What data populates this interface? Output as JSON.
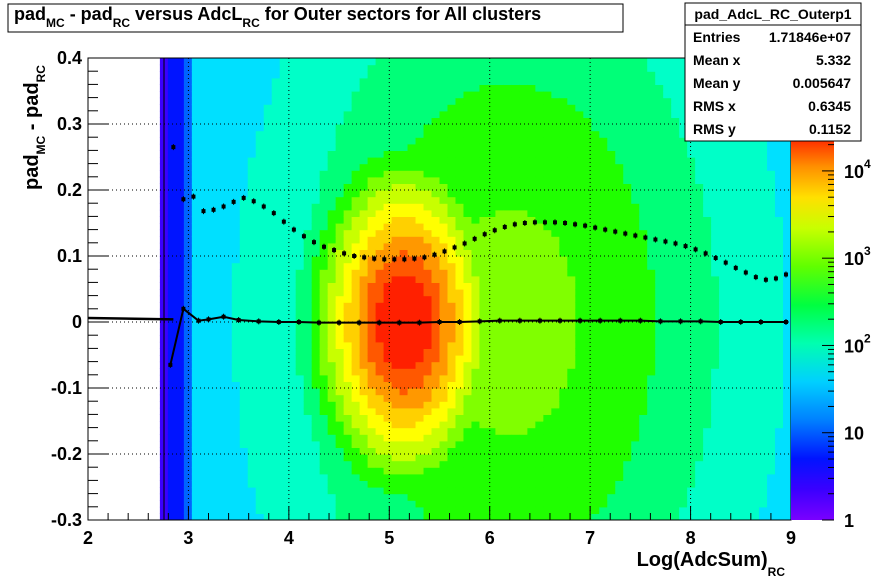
{
  "chart_data": {
    "type": "heatmap",
    "title": {
      "parts": [
        "pad",
        "MC",
        " - pad",
        "RC",
        " versus AdcL",
        "RC",
        " for Outer sectors for All clusters"
      ]
    },
    "xlabel": {
      "main": "Log(AdcSum)",
      "sub": "RC"
    },
    "ylabel": {
      "parts": [
        "pad",
        "MC",
        " - pad",
        "RC"
      ]
    },
    "xlim": [
      2,
      9
    ],
    "ylim": [
      -0.3,
      0.4
    ],
    "x_ticks": [
      "2",
      "3",
      "4",
      "5",
      "6",
      "7",
      "8",
      "9"
    ],
    "y_ticks": [
      "-0.3",
      "-0.2",
      "-0.1",
      "0",
      "0.1",
      "0.2",
      "0.3",
      "0.4"
    ],
    "z_scale": "log",
    "z_ticks": [
      "1",
      "10",
      "10^2",
      "10^3",
      "10^4"
    ],
    "grid": true,
    "stats": {
      "name": "pad_AdcL_RC_Outerp1",
      "rows": [
        {
          "label": "Entries",
          "value": "1.71846e+07"
        },
        {
          "label": "Mean x",
          "value": "5.332"
        },
        {
          "label": "Mean y",
          "value": "0.005647"
        },
        {
          "label": "RMS x",
          "value": "0.6345"
        },
        {
          "label": "RMS y",
          "value": "0.1152"
        }
      ]
    },
    "series": [
      {
        "name": "mean",
        "x": [
          2.82,
          2.95,
          3.1,
          3.2,
          3.35,
          3.5,
          3.7,
          3.9,
          4.1,
          4.3,
          4.5,
          4.7,
          4.9,
          5.1,
          5.3,
          5.5,
          5.7,
          5.9,
          6.1,
          6.3,
          6.5,
          6.7,
          6.9,
          7.1,
          7.3,
          7.5,
          7.7,
          7.9,
          8.1,
          8.3,
          8.5,
          8.7,
          8.95
        ],
        "y": [
          -0.065,
          0.02,
          0.002,
          0.004,
          0.008,
          0.003,
          0.001,
          0.0,
          0.0,
          -0.001,
          -0.001,
          -0.001,
          -0.001,
          -0.001,
          -0.001,
          0.0,
          0.0,
          0.001,
          0.002,
          0.002,
          0.002,
          0.002,
          0.002,
          0.002,
          0.002,
          0.002,
          0.001,
          0.001,
          0.001,
          0.0,
          0.0,
          0.0,
          0.0
        ]
      },
      {
        "name": "rms",
        "x": [
          2.85,
          2.95,
          3.05,
          3.15,
          3.25,
          3.35,
          3.45,
          3.55,
          3.65,
          3.75,
          3.85,
          3.95,
          4.05,
          4.15,
          4.25,
          4.35,
          4.45,
          4.55,
          4.65,
          4.75,
          4.85,
          4.95,
          5.05,
          5.15,
          5.25,
          5.35,
          5.45,
          5.55,
          5.65,
          5.75,
          5.85,
          5.95,
          6.05,
          6.15,
          6.25,
          6.35,
          6.45,
          6.55,
          6.65,
          6.75,
          6.85,
          6.95,
          7.05,
          7.15,
          7.25,
          7.35,
          7.45,
          7.55,
          7.65,
          7.75,
          7.85,
          7.95,
          8.05,
          8.15,
          8.25,
          8.35,
          8.45,
          8.55,
          8.65,
          8.75,
          8.85,
          8.95
        ],
        "y": [
          0.265,
          0.186,
          0.19,
          0.168,
          0.17,
          0.175,
          0.182,
          0.188,
          0.183,
          0.175,
          0.165,
          0.152,
          0.14,
          0.13,
          0.121,
          0.114,
          0.109,
          0.104,
          0.1,
          0.098,
          0.096,
          0.095,
          0.095,
          0.095,
          0.096,
          0.098,
          0.102,
          0.107,
          0.113,
          0.119,
          0.126,
          0.133,
          0.139,
          0.144,
          0.148,
          0.15,
          0.151,
          0.151,
          0.151,
          0.15,
          0.148,
          0.146,
          0.143,
          0.14,
          0.137,
          0.134,
          0.131,
          0.128,
          0.125,
          0.122,
          0.119,
          0.115,
          0.11,
          0.104,
          0.097,
          0.09,
          0.082,
          0.075,
          0.068,
          0.064,
          0.066,
          0.072
        ]
      }
    ]
  }
}
